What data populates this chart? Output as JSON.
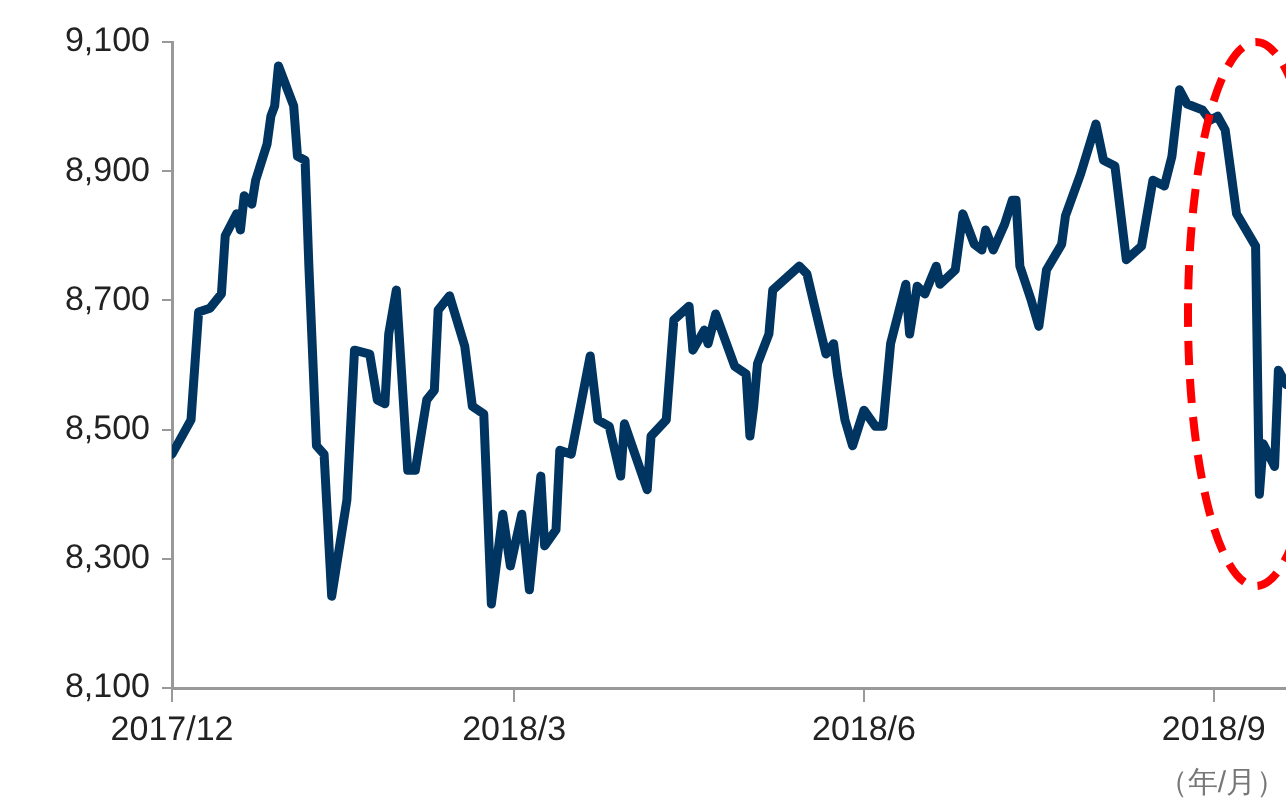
{
  "chart_data": {
    "type": "line",
    "xlabel": "（年/月）",
    "legend": false,
    "grid": false,
    "marker": "none",
    "line_style": "solid",
    "xlim": [
      "2017-12-01",
      "2018-09-20"
    ],
    "xticks": [
      {
        "value": "2017-12-01",
        "label": "2017/12"
      },
      {
        "value": "2018-03-01",
        "label": "2018/3"
      },
      {
        "value": "2018-06-01",
        "label": "2018/6"
      },
      {
        "value": "2018-09-01",
        "label": "2018/9"
      }
    ],
    "ylim": [
      8100,
      9100
    ],
    "yticks": [
      {
        "value": 8100,
        "label": "8,100"
      },
      {
        "value": 8300,
        "label": "8,300"
      },
      {
        "value": 8500,
        "label": "8,500"
      },
      {
        "value": 8700,
        "label": "8,700"
      },
      {
        "value": 8900,
        "label": "8,900"
      },
      {
        "value": 9100,
        "label": "9,100"
      }
    ],
    "x": [
      "2017-12-01",
      "2017-12-06",
      "2017-12-08",
      "2017-12-11",
      "2017-12-14",
      "2017-12-15",
      "2017-12-18",
      "2017-12-19",
      "2017-12-20",
      "2017-12-22",
      "2017-12-23",
      "2017-12-26",
      "2017-12-27",
      "2017-12-28",
      "2017-12-29",
      "2018-01-02",
      "2018-01-03",
      "2018-01-05",
      "2018-01-06",
      "2018-01-08",
      "2018-01-10",
      "2018-01-12",
      "2018-01-16",
      "2018-01-18",
      "2018-01-22",
      "2018-01-24",
      "2018-01-26",
      "2018-01-27",
      "2018-01-29",
      "2018-02-01",
      "2018-02-03",
      "2018-02-06",
      "2018-02-08",
      "2018-02-09",
      "2018-02-12",
      "2018-02-16",
      "2018-02-18",
      "2018-02-21",
      "2018-02-23",
      "2018-02-26",
      "2018-02-28",
      "2018-03-03",
      "2018-03-05",
      "2018-03-08",
      "2018-03-09",
      "2018-03-12",
      "2018-03-13",
      "2018-03-16",
      "2018-03-21",
      "2018-03-23",
      "2018-03-26",
      "2018-03-29",
      "2018-03-30",
      "2018-04-05",
      "2018-04-06",
      "2018-04-10",
      "2018-04-12",
      "2018-04-16",
      "2018-04-17",
      "2018-04-20",
      "2018-04-21",
      "2018-04-23",
      "2018-04-28",
      "2018-05-01",
      "2018-05-02",
      "2018-05-03",
      "2018-05-04",
      "2018-05-07",
      "2018-05-08",
      "2018-05-15",
      "2018-05-17",
      "2018-05-19",
      "2018-05-22",
      "2018-05-24",
      "2018-05-25",
      "2018-05-27",
      "2018-05-29",
      "2018-06-01",
      "2018-06-04",
      "2018-06-06",
      "2018-06-08",
      "2018-06-12",
      "2018-06-13",
      "2018-06-15",
      "2018-06-17",
      "2018-06-20",
      "2018-06-21",
      "2018-06-25",
      "2018-06-27",
      "2018-06-30",
      "2018-07-02",
      "2018-07-03",
      "2018-07-05",
      "2018-07-08",
      "2018-07-10",
      "2018-07-11",
      "2018-07-12",
      "2018-07-15",
      "2018-07-17",
      "2018-07-19",
      "2018-07-23",
      "2018-07-24",
      "2018-07-28",
      "2018-08-01",
      "2018-08-03",
      "2018-08-06",
      "2018-08-09",
      "2018-08-13",
      "2018-08-16",
      "2018-08-19",
      "2018-08-21",
      "2018-08-23",
      "2018-08-25",
      "2018-08-29",
      "2018-08-31",
      "2018-09-02",
      "2018-09-04",
      "2018-09-07",
      "2018-09-12",
      "2018-09-13",
      "2018-09-14",
      "2018-09-17",
      "2018-09-18",
      "2018-09-20"
    ],
    "series": [
      {
        "color": "#003561",
        "values": [
          8462,
          8515,
          8682,
          8688,
          8710,
          8800,
          8834,
          8809,
          8862,
          8849,
          8886,
          8942,
          8985,
          9001,
          9063,
          9001,
          8923,
          8917,
          8753,
          8475,
          8462,
          8242,
          8391,
          8623,
          8617,
          8546,
          8540,
          8648,
          8716,
          8437,
          8437,
          8546,
          8561,
          8685,
          8707,
          8629,
          8536,
          8524,
          8230,
          8369,
          8289,
          8369,
          8252,
          8428,
          8320,
          8345,
          8468,
          8462,
          8614,
          8515,
          8505,
          8428,
          8509,
          8407,
          8490,
          8515,
          8670,
          8691,
          8623,
          8654,
          8633,
          8679,
          8598,
          8586,
          8490,
          8536,
          8602,
          8648,
          8716,
          8753,
          8741,
          8691,
          8617,
          8633,
          8586,
          8515,
          8475,
          8530,
          8505,
          8505,
          8633,
          8725,
          8648,
          8722,
          8710,
          8753,
          8725,
          8747,
          8834,
          8787,
          8778,
          8809,
          8778,
          8818,
          8855,
          8855,
          8753,
          8700,
          8660,
          8747,
          8787,
          8831,
          8896,
          8973,
          8917,
          8908,
          8763,
          8784,
          8886,
          8877,
          8923,
          9026,
          9004,
          8995,
          8979,
          8985,
          8964,
          8834,
          8784,
          8400,
          8478,
          8443,
          8592,
          8570
        ]
      }
    ]
  }
}
